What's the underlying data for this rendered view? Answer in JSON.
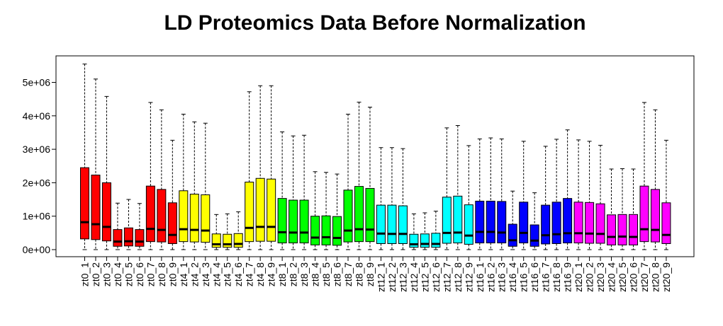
{
  "chart_data": {
    "type": "boxplot",
    "title": "LD Proteomics Data Before Normalization",
    "xlabel": "",
    "ylabel": "",
    "ylim": [
      -200000,
      5700000
    ],
    "y_ticks": [
      0,
      1000000,
      2000000,
      3000000,
      4000000,
      5000000
    ],
    "y_tick_labels": [
      "0e+00",
      "1e+06",
      "2e+06",
      "3e+06",
      "4e+06",
      "5e+06"
    ],
    "grid": false,
    "legend": "none",
    "group_colors": {
      "zt0": "#ff0000",
      "zt4": "#ffff00",
      "zt8": "#00ff00",
      "zt12": "#00ffff",
      "zt16": "#0000ff",
      "zt20": "#ff00ff"
    },
    "categories": [
      "zt0_1",
      "zt0_2",
      "zt0_3",
      "zt0_4",
      "zt0_5",
      "zt0_6",
      "zt0_7",
      "zt0_8",
      "zt0_9",
      "zt4_1",
      "zt4_2",
      "zt4_3",
      "zt4_4",
      "zt4_5",
      "zt4_6",
      "zt4_7",
      "zt4_8",
      "zt4_9",
      "zt8_1",
      "zt8_2",
      "zt8_3",
      "zt8_4",
      "zt8_5",
      "zt8_6",
      "zt8_7",
      "zt8_8",
      "zt8_9",
      "zt12_1",
      "zt12_2",
      "zt12_3",
      "zt12_4",
      "zt12_5",
      "zt12_6",
      "zt12_7",
      "zt12_8",
      "zt12_9",
      "zt16_1",
      "zt16_2",
      "zt16_3",
      "zt16_4",
      "zt16_5",
      "zt16_6",
      "zt16_7",
      "zt16_8",
      "zt16_9",
      "zt20_1",
      "zt20_2",
      "zt20_3",
      "zt20_4",
      "zt20_5",
      "zt20_6",
      "zt20_7",
      "zt20_8",
      "zt20_9"
    ],
    "groups": [
      "zt0",
      "zt0",
      "zt0",
      "zt0",
      "zt0",
      "zt0",
      "zt0",
      "zt0",
      "zt0",
      "zt4",
      "zt4",
      "zt4",
      "zt4",
      "zt4",
      "zt4",
      "zt4",
      "zt4",
      "zt4",
      "zt8",
      "zt8",
      "zt8",
      "zt8",
      "zt8",
      "zt8",
      "zt8",
      "zt8",
      "zt8",
      "zt12",
      "zt12",
      "zt12",
      "zt12",
      "zt12",
      "zt12",
      "zt12",
      "zt12",
      "zt12",
      "zt16",
      "zt16",
      "zt16",
      "zt16",
      "zt16",
      "zt16",
      "zt16",
      "zt16",
      "zt16",
      "zt20",
      "zt20",
      "zt20",
      "zt20",
      "zt20",
      "zt20",
      "zt20",
      "zt20",
      "zt20"
    ],
    "boxes": [
      {
        "min": 0,
        "q1": 320000,
        "median": 820000,
        "q3": 2450000,
        "max": 5550000
      },
      {
        "min": 0,
        "q1": 300000,
        "median": 760000,
        "q3": 2230000,
        "max": 5100000
      },
      {
        "min": 0,
        "q1": 260000,
        "median": 680000,
        "q3": 2000000,
        "max": 4580000
      },
      {
        "min": 0,
        "q1": 100000,
        "median": 240000,
        "q3": 600000,
        "max": 1390000
      },
      {
        "min": 0,
        "q1": 110000,
        "median": 250000,
        "q3": 650000,
        "max": 1500000
      },
      {
        "min": 0,
        "q1": 100000,
        "median": 240000,
        "q3": 600000,
        "max": 1380000
      },
      {
        "min": 0,
        "q1": 240000,
        "median": 620000,
        "q3": 1900000,
        "max": 4400000
      },
      {
        "min": 0,
        "q1": 230000,
        "median": 590000,
        "q3": 1800000,
        "max": 4180000
      },
      {
        "min": 0,
        "q1": 180000,
        "median": 440000,
        "q3": 1400000,
        "max": 3270000
      },
      {
        "min": 0,
        "q1": 240000,
        "median": 610000,
        "q3": 1760000,
        "max": 4050000
      },
      {
        "min": 0,
        "q1": 230000,
        "median": 590000,
        "q3": 1660000,
        "max": 3820000
      },
      {
        "min": 0,
        "q1": 220000,
        "median": 570000,
        "q3": 1640000,
        "max": 3780000
      },
      {
        "min": 0,
        "q1": 70000,
        "median": 160000,
        "q3": 470000,
        "max": 1050000
      },
      {
        "min": 0,
        "q1": 70000,
        "median": 160000,
        "q3": 460000,
        "max": 1070000
      },
      {
        "min": 0,
        "q1": 70000,
        "median": 170000,
        "q3": 480000,
        "max": 1130000
      },
      {
        "min": 0,
        "q1": 240000,
        "median": 650000,
        "q3": 2020000,
        "max": 4720000
      },
      {
        "min": 0,
        "q1": 250000,
        "median": 680000,
        "q3": 2130000,
        "max": 4900000
      },
      {
        "min": 0,
        "q1": 250000,
        "median": 680000,
        "q3": 2110000,
        "max": 4900000
      },
      {
        "min": 0,
        "q1": 200000,
        "median": 520000,
        "q3": 1530000,
        "max": 3520000
      },
      {
        "min": 0,
        "q1": 200000,
        "median": 510000,
        "q3": 1480000,
        "max": 3400000
      },
      {
        "min": 0,
        "q1": 200000,
        "median": 510000,
        "q3": 1480000,
        "max": 3420000
      },
      {
        "min": 0,
        "q1": 140000,
        "median": 360000,
        "q3": 1000000,
        "max": 2330000
      },
      {
        "min": 0,
        "q1": 140000,
        "median": 370000,
        "q3": 1010000,
        "max": 2310000
      },
      {
        "min": 0,
        "q1": 130000,
        "median": 350000,
        "q3": 990000,
        "max": 2260000
      },
      {
        "min": 0,
        "q1": 230000,
        "median": 570000,
        "q3": 1780000,
        "max": 4050000
      },
      {
        "min": 0,
        "q1": 240000,
        "median": 610000,
        "q3": 1890000,
        "max": 4410000
      },
      {
        "min": 0,
        "q1": 240000,
        "median": 600000,
        "q3": 1830000,
        "max": 4260000
      },
      {
        "min": 0,
        "q1": 180000,
        "median": 480000,
        "q3": 1330000,
        "max": 3050000
      },
      {
        "min": 0,
        "q1": 180000,
        "median": 470000,
        "q3": 1330000,
        "max": 3050000
      },
      {
        "min": 0,
        "q1": 180000,
        "median": 470000,
        "q3": 1310000,
        "max": 3020000
      },
      {
        "min": 0,
        "q1": 70000,
        "median": 160000,
        "q3": 460000,
        "max": 1070000
      },
      {
        "min": 0,
        "q1": 70000,
        "median": 170000,
        "q3": 470000,
        "max": 1100000
      },
      {
        "min": 0,
        "q1": 70000,
        "median": 170000,
        "q3": 490000,
        "max": 1150000
      },
      {
        "min": 0,
        "q1": 190000,
        "median": 500000,
        "q3": 1570000,
        "max": 3640000
      },
      {
        "min": 0,
        "q1": 200000,
        "median": 510000,
        "q3": 1600000,
        "max": 3710000
      },
      {
        "min": 0,
        "q1": 160000,
        "median": 420000,
        "q3": 1340000,
        "max": 3110000
      },
      {
        "min": 0,
        "q1": 200000,
        "median": 530000,
        "q3": 1450000,
        "max": 3310000
      },
      {
        "min": 0,
        "q1": 200000,
        "median": 530000,
        "q3": 1450000,
        "max": 3340000
      },
      {
        "min": 0,
        "q1": 200000,
        "median": 510000,
        "q3": 1440000,
        "max": 3310000
      },
      {
        "min": 0,
        "q1": 100000,
        "median": 280000,
        "q3": 760000,
        "max": 1750000
      },
      {
        "min": 0,
        "q1": 200000,
        "median": 500000,
        "q3": 1420000,
        "max": 3240000
      },
      {
        "min": 0,
        "q1": 100000,
        "median": 270000,
        "q3": 740000,
        "max": 1700000
      },
      {
        "min": 0,
        "q1": 170000,
        "median": 430000,
        "q3": 1330000,
        "max": 3090000
      },
      {
        "min": 0,
        "q1": 180000,
        "median": 460000,
        "q3": 1420000,
        "max": 3300000
      },
      {
        "min": 0,
        "q1": 200000,
        "median": 490000,
        "q3": 1530000,
        "max": 3580000
      },
      {
        "min": 0,
        "q1": 200000,
        "median": 490000,
        "q3": 1420000,
        "max": 3280000
      },
      {
        "min": 0,
        "q1": 190000,
        "median": 480000,
        "q3": 1410000,
        "max": 3240000
      },
      {
        "min": 0,
        "q1": 190000,
        "median": 470000,
        "q3": 1370000,
        "max": 3120000
      },
      {
        "min": 0,
        "q1": 140000,
        "median": 380000,
        "q3": 1040000,
        "max": 2410000
      },
      {
        "min": 0,
        "q1": 140000,
        "median": 390000,
        "q3": 1050000,
        "max": 2420000
      },
      {
        "min": 0,
        "q1": 140000,
        "median": 380000,
        "q3": 1050000,
        "max": 2410000
      },
      {
        "min": 0,
        "q1": 240000,
        "median": 610000,
        "q3": 1900000,
        "max": 4400000
      },
      {
        "min": 0,
        "q1": 230000,
        "median": 590000,
        "q3": 1800000,
        "max": 4180000
      },
      {
        "min": 0,
        "q1": 180000,
        "median": 440000,
        "q3": 1400000,
        "max": 3270000
      }
    ]
  }
}
